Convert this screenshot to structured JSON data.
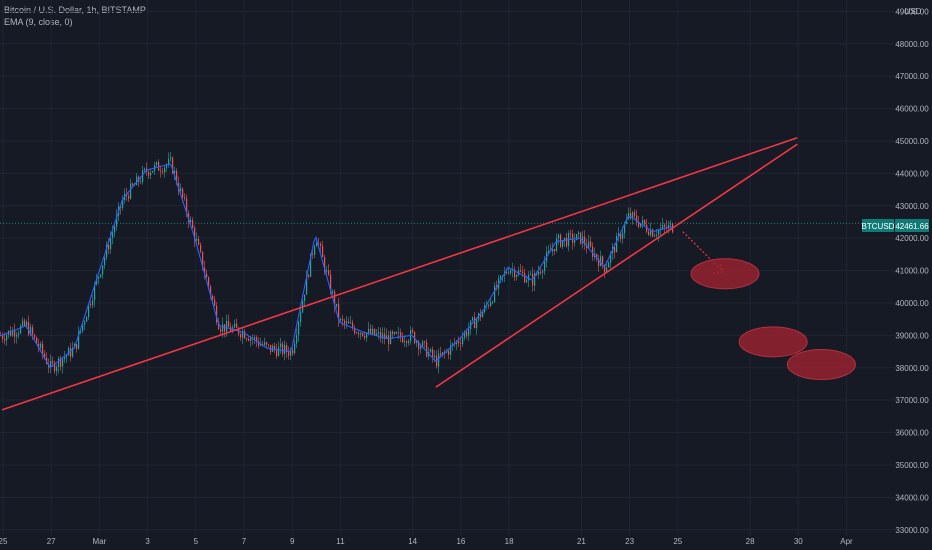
{
  "header": {
    "symbol_title": "Bitcoin / U.S. Dollar, 1h, BITSTAMP",
    "indicator": "EMA (9, close, 0)"
  },
  "price_scale": {
    "currency": "USD",
    "ticks": [
      "33000.00",
      "34000.00",
      "35000.00",
      "36000.00",
      "37000.00",
      "38000.00",
      "39000.00",
      "40000.00",
      "41000.00",
      "42000.00",
      "43000.00",
      "44000.00",
      "45000.00",
      "46000.00",
      "47000.00",
      "48000.00",
      "49000.00"
    ]
  },
  "time_scale": {
    "ticks": [
      "25",
      "27",
      "Mar",
      "3",
      "5",
      "7",
      "9",
      "11",
      "14",
      "16",
      "18",
      "21",
      "23",
      "25",
      "28",
      "30",
      "Apr"
    ]
  },
  "last_price": {
    "symbol": "BTCUSD",
    "value": "42461.66"
  },
  "colors": {
    "background": "#161a25",
    "candle_up": "#26a69a",
    "candle_down": "#ef5350",
    "ema": "#2962ff",
    "trendline": "#f23645",
    "target_ellipse": "#9b2230",
    "last_price_badge": "#0f7a76",
    "grid": "#1f2433"
  },
  "chart_data": {
    "type": "line",
    "title": "Bitcoin / U.S. Dollar, 1h, BITSTAMP",
    "xlabel": "",
    "ylabel": "",
    "ylim": [
      32800,
      49500
    ],
    "x_ticks": [
      "25",
      "27",
      "Mar",
      "3",
      "5",
      "7",
      "9",
      "11",
      "14",
      "16",
      "18",
      "21",
      "23",
      "25",
      "28",
      "30",
      "Apr"
    ],
    "y_ticks": [
      33000,
      34000,
      35000,
      36000,
      37000,
      38000,
      39000,
      40000,
      41000,
      42000,
      43000,
      44000,
      45000,
      46000,
      47000,
      48000,
      49000
    ],
    "grid": true,
    "series": [
      {
        "name": "EMA (9, close, 0)",
        "x": [
          "Feb 25",
          "Feb 26",
          "Feb 27",
          "Feb 28",
          "Mar 1",
          "Mar 2",
          "Mar 3",
          "Mar 4",
          "Mar 5",
          "Mar 6",
          "Mar 7",
          "Mar 8",
          "Mar 9",
          "Mar 10",
          "Mar 11",
          "Mar 12",
          "Mar 13",
          "Mar 14",
          "Mar 15",
          "Mar 16",
          "Mar 17",
          "Mar 18",
          "Mar 19",
          "Mar 20",
          "Mar 21",
          "Mar 22",
          "Mar 23",
          "Mar 24"
        ],
        "values": [
          39000,
          39300,
          38000,
          38600,
          43200,
          44100,
          44300,
          42000,
          39300,
          39100,
          38600,
          38500,
          42100,
          39400,
          39100,
          38900,
          39000,
          38200,
          38900,
          39800,
          41100,
          40700,
          41900,
          42000,
          41100,
          42700,
          42200,
          42400
        ]
      }
    ],
    "last_price": 42461.66,
    "annotations": {
      "rising_wedge": {
        "upper_line": {
          "from": [
            "Feb 25",
            36700
          ],
          "to": [
            "Mar 29",
            45100
          ]
        },
        "lower_line": {
          "from": [
            "Mar 14",
            37400
          ],
          "to": [
            "Mar 29",
            44900
          ]
        }
      },
      "projected_targets": [
        {
          "date": "Mar 26",
          "price": 40900
        },
        {
          "date": "Mar 28",
          "price": 38800
        },
        {
          "date": "Mar 30",
          "price": 38100
        }
      ]
    }
  }
}
